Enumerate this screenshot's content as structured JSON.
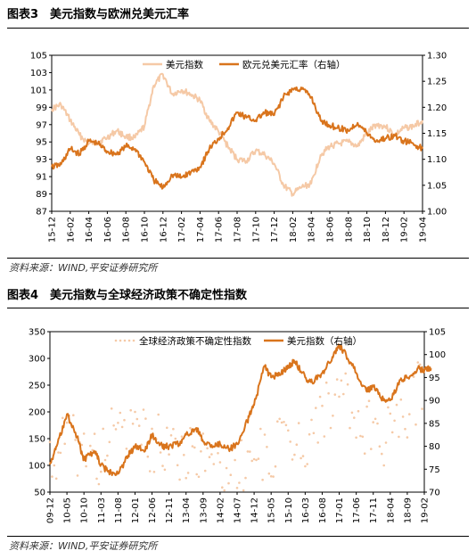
{
  "chart_data": [
    {
      "type": "line",
      "figure_label": "图表3",
      "title": "美元指数与欧洲兑美元汇率",
      "source": "资料来源：WIND,平安证券研究所",
      "legend_position": "top",
      "grid": false,
      "categories": [
        "15-12",
        "16-02",
        "16-04",
        "16-06",
        "16-08",
        "16-10",
        "16-12",
        "17-02",
        "17-04",
        "17-06",
        "17-08",
        "17-10",
        "17-12",
        "18-02",
        "18-04",
        "18-06",
        "18-08",
        "18-10",
        "18-12",
        "19-02",
        "19-04"
      ],
      "left_axis": {
        "min": 87,
        "max": 105,
        "ticks": [
          "87",
          "89",
          "91",
          "93",
          "95",
          "97",
          "99",
          "101",
          "103",
          "105"
        ]
      },
      "right_axis": {
        "min": 1.0,
        "max": 1.3,
        "ticks": [
          "1.00",
          "1.05",
          "1.10",
          "1.15",
          "1.20",
          "1.25",
          "1.30"
        ]
      },
      "series": [
        {
          "name": "美元指数",
          "axis": "left",
          "color": "#f5c9a6",
          "x": [
            "15-12",
            "16-01",
            "16-02",
            "16-03",
            "16-04",
            "16-05",
            "16-06",
            "16-07",
            "16-08",
            "16-09",
            "16-10",
            "16-11",
            "16-12",
            "17-01",
            "17-02",
            "17-03",
            "17-04",
            "17-05",
            "17-06",
            "17-07",
            "17-08",
            "17-09",
            "17-10",
            "17-11",
            "17-12",
            "18-01",
            "18-02",
            "18-03",
            "18-04",
            "18-05",
            "18-06",
            "18-07",
            "18-08",
            "18-09",
            "18-10",
            "18-11",
            "18-12",
            "19-01",
            "19-02",
            "19-03",
            "19-04"
          ],
          "values": [
            98.8,
            99.3,
            97.5,
            95.8,
            94.8,
            95.0,
            95.5,
            96.3,
            95.6,
            95.5,
            96.8,
            101.5,
            102.8,
            100.5,
            101.0,
            100.5,
            99.8,
            97.5,
            96.2,
            94.5,
            93.0,
            92.8,
            94.0,
            93.5,
            92.5,
            90.0,
            89.0,
            89.8,
            90.2,
            93.5,
            94.5,
            94.8,
            95.0,
            94.5,
            96.0,
            97.0,
            96.8,
            95.8,
            96.6,
            96.8,
            97.5
          ]
        },
        {
          "name": "欧元兑美元汇率（右轴）",
          "axis": "right",
          "color": "#d9741c",
          "x": [
            "15-12",
            "16-01",
            "16-02",
            "16-03",
            "16-04",
            "16-05",
            "16-06",
            "16-07",
            "16-08",
            "16-09",
            "16-10",
            "16-11",
            "16-12",
            "17-01",
            "17-02",
            "17-03",
            "17-04",
            "17-05",
            "17-06",
            "17-07",
            "17-08",
            "17-09",
            "17-10",
            "17-11",
            "17-12",
            "18-01",
            "18-02",
            "18-03",
            "18-04",
            "18-05",
            "18-06",
            "18-07",
            "18-08",
            "18-09",
            "18-10",
            "18-11",
            "18-12",
            "19-01",
            "19-02",
            "19-03",
            "19-04"
          ],
          "values": [
            1.085,
            1.09,
            1.12,
            1.11,
            1.135,
            1.13,
            1.115,
            1.11,
            1.125,
            1.12,
            1.095,
            1.06,
            1.045,
            1.07,
            1.065,
            1.075,
            1.085,
            1.12,
            1.14,
            1.16,
            1.19,
            1.18,
            1.175,
            1.19,
            1.185,
            1.22,
            1.235,
            1.235,
            1.22,
            1.175,
            1.165,
            1.16,
            1.155,
            1.17,
            1.15,
            1.135,
            1.14,
            1.145,
            1.135,
            1.13,
            1.12
          ]
        }
      ]
    },
    {
      "type": "line",
      "figure_label": "图表4",
      "title": "美元指数与全球经济政策不确定性指数",
      "source": "资料来源：WIND,平安证券研究所",
      "legend_position": "top",
      "grid": false,
      "categories": [
        "09-12",
        "10-05",
        "10-10",
        "11-03",
        "11-08",
        "12-01",
        "12-06",
        "12-11",
        "13-04",
        "13-09",
        "14-02",
        "14-07",
        "14-12",
        "15-05",
        "15-10",
        "16-03",
        "16-08",
        "17-01",
        "17-06",
        "17-11",
        "18-04",
        "18-09",
        "19-02"
      ],
      "left_axis": {
        "min": 50,
        "max": 350,
        "ticks": [
          "50",
          "100",
          "150",
          "200",
          "250",
          "300",
          "350"
        ]
      },
      "right_axis": {
        "min": 70,
        "max": 105,
        "ticks": [
          "70",
          "75",
          "80",
          "85",
          "90",
          "95",
          "100",
          "105"
        ]
      },
      "series": [
        {
          "name": "全球经济政策不确定性指数",
          "axis": "left",
          "style": "dotted",
          "color": "#f5c9a6",
          "x": [
            "09-12",
            "10-05",
            "10-10",
            "11-03",
            "11-08",
            "12-01",
            "12-06",
            "12-11",
            "13-04",
            "13-09",
            "14-02",
            "14-07",
            "14-12",
            "15-05",
            "15-10",
            "16-03",
            "16-08",
            "17-01",
            "17-06",
            "17-11",
            "18-04",
            "18-09",
            "19-02"
          ],
          "values": [
            105,
            150,
            125,
            115,
            175,
            155,
            140,
            150,
            120,
            110,
            100,
            95,
            115,
            125,
            140,
            150,
            200,
            240,
            170,
            160,
            150,
            210,
            250
          ]
        },
        {
          "name": "美元指数（右轴）",
          "axis": "right",
          "color": "#d9741c",
          "x": [
            "09-12",
            "10-02",
            "10-05",
            "10-08",
            "10-10",
            "11-01",
            "11-03",
            "11-05",
            "11-08",
            "11-11",
            "12-01",
            "12-04",
            "12-06",
            "12-09",
            "12-11",
            "13-02",
            "13-04",
            "13-07",
            "13-09",
            "13-12",
            "14-02",
            "14-05",
            "14-07",
            "14-10",
            "14-12",
            "15-03",
            "15-05",
            "15-08",
            "15-10",
            "15-12",
            "16-03",
            "16-05",
            "16-08",
            "16-11",
            "17-01",
            "17-03",
            "17-06",
            "17-09",
            "17-11",
            "18-02",
            "18-04",
            "18-07",
            "18-09",
            "18-12",
            "19-02",
            "19-04"
          ],
          "values": [
            76,
            80,
            87,
            82,
            77,
            79,
            76,
            74.5,
            74,
            78,
            80,
            79,
            82.5,
            80,
            80,
            80.5,
            82.5,
            84,
            81,
            80,
            80.5,
            79.5,
            80.5,
            85.5,
            89,
            97.5,
            95,
            96,
            97.5,
            98.5,
            95,
            94,
            96,
            99.5,
            102,
            100,
            96,
            92,
            93,
            90,
            90,
            94.5,
            95,
            97,
            96.5,
            97
          ]
        }
      ]
    }
  ]
}
